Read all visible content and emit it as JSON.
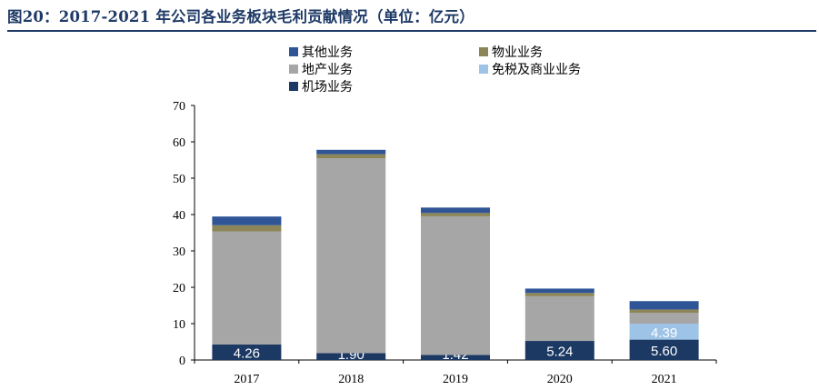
{
  "figure": {
    "title": "图20：2017-2021 年公司各业务板块毛利贡献情况（单位：亿元）"
  },
  "chart_data": {
    "type": "bar",
    "stacked": true,
    "categories": [
      "2017",
      "2018",
      "2019",
      "2020",
      "2021"
    ],
    "ylim": [
      0,
      70
    ],
    "yticks": [
      0,
      10,
      20,
      30,
      40,
      50,
      60,
      70
    ],
    "grid": false,
    "legend_position": "top",
    "series": [
      {
        "name": "机场业务",
        "color": "#1c3964",
        "values": [
          4.26,
          1.9,
          1.42,
          5.24,
          5.6
        ],
        "labels": [
          "4.26",
          "1.90",
          "1.42",
          "5.24",
          "5.60"
        ]
      },
      {
        "name": "免税及商业业务",
        "color": "#9dc3e6",
        "values": [
          0,
          0,
          0,
          0,
          4.39
        ],
        "labels": [
          "",
          "",
          "",
          "",
          "4.39"
        ]
      },
      {
        "name": "地产业务",
        "color": "#a6a6a6",
        "values": [
          31.1,
          53.6,
          38.1,
          12.3,
          3.0
        ],
        "labels": []
      },
      {
        "name": "物业业务",
        "color": "#8c8558",
        "values": [
          1.7,
          1.1,
          0.9,
          0.9,
          0.9
        ],
        "labels": []
      },
      {
        "name": "其他业务",
        "color": "#2f5597",
        "values": [
          2.4,
          1.2,
          1.5,
          1.2,
          2.3
        ],
        "labels": []
      }
    ],
    "legend_order": [
      "其他业务",
      "物业业务",
      "地产业务",
      "免税及商业业务",
      "机场业务"
    ]
  }
}
